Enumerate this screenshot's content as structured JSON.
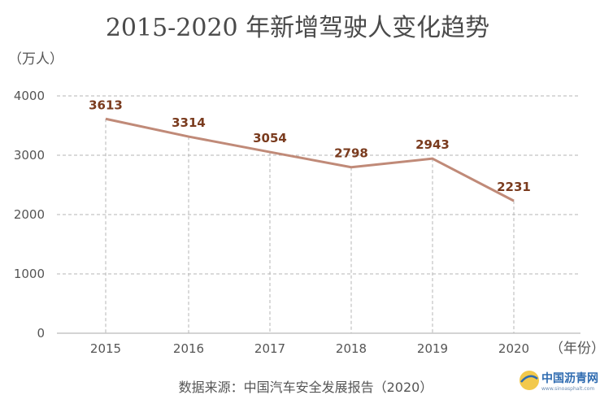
{
  "chart_data": {
    "type": "line",
    "title": "2015-2020 年新增驾驶人变化趋势",
    "ylabel": "（万人）",
    "xlabel": "（年份）",
    "categories": [
      "2015",
      "2016",
      "2017",
      "2018",
      "2019",
      "2020"
    ],
    "series": [
      {
        "name": "新增驾驶人",
        "values": [
          3613,
          3314,
          3054,
          2798,
          2943,
          2231
        ]
      }
    ],
    "ylim": [
      0,
      4000
    ],
    "yticks": [
      "0",
      "1000",
      "2000",
      "3000",
      "4000"
    ],
    "grid": true,
    "line_color": "#c08a78"
  },
  "source": "数据来源：中国汽车安全发展报告（2020）",
  "watermark": {
    "name": "中国沥青网",
    "url": "www.sinoasphalt.com"
  }
}
